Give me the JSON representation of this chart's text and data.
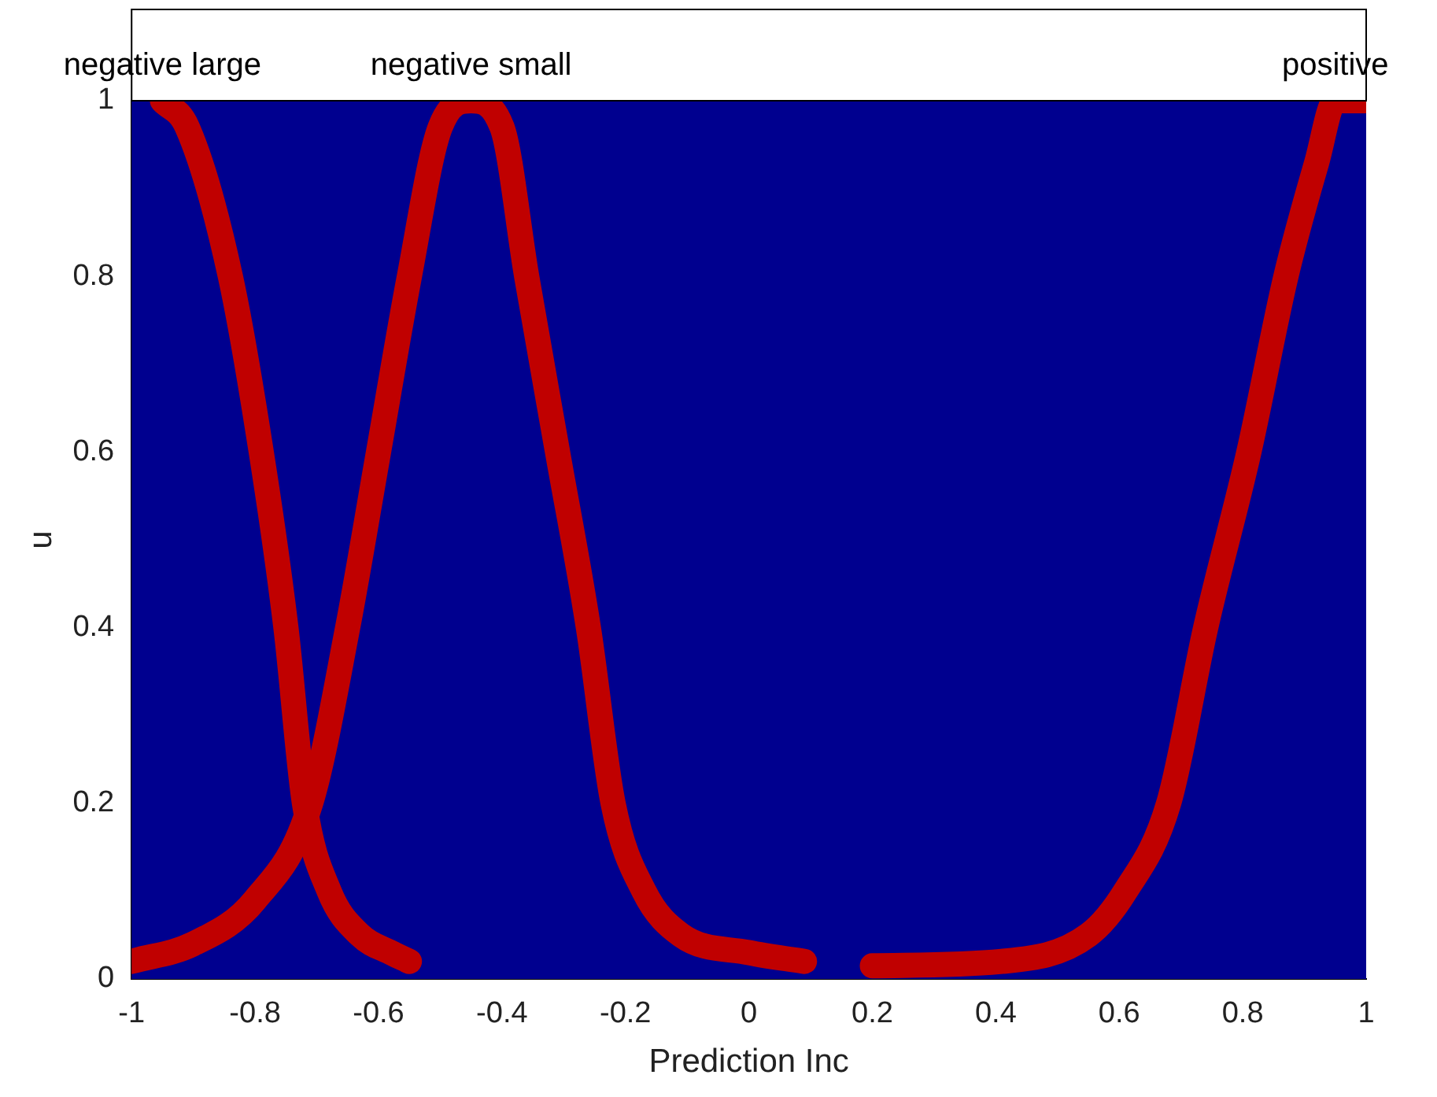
{
  "chart_data": {
    "type": "line",
    "xlabel": "Prediction Inc",
    "ylabel": "u",
    "xlim": [
      -1,
      1
    ],
    "xticks": [
      -1,
      -0.8,
      -0.6,
      -0.4,
      -0.2,
      0,
      0.2,
      0.4,
      0.6,
      0.8,
      1
    ],
    "ylim": [
      0,
      1
    ],
    "yticks": [
      0,
      0.2,
      0.4,
      0.6,
      0.8,
      1
    ],
    "grid": false,
    "legend": false,
    "marker": "none",
    "line_style": "solid",
    "series": [
      {
        "name": "negative large",
        "color": "#c00000",
        "x": [
          -0.95,
          -0.91,
          -0.84,
          -0.79,
          -0.75,
          -0.72,
          -0.68,
          -0.63,
          -0.58,
          -0.55
        ],
        "values": [
          1,
          0.97,
          0.8,
          0.6,
          0.4,
          0.2,
          0.1,
          0.05,
          0.03,
          0.02
        ]
      },
      {
        "name": "negative small",
        "color": "#c00000",
        "x": [
          -1,
          -0.9,
          -0.8,
          -0.71,
          -0.65,
          -0.6,
          -0.55,
          -0.5,
          -0.45,
          -0.4,
          -0.36,
          -0.31,
          -0.26,
          -0.22,
          -0.17,
          -0.11,
          0,
          0.09
        ],
        "values": [
          0.02,
          0.04,
          0.09,
          0.2,
          0.4,
          0.6,
          0.8,
          0.97,
          1,
          0.97,
          0.8,
          0.6,
          0.4,
          0.2,
          0.1,
          0.05,
          0.03,
          0.02
        ]
      },
      {
        "name": "positive",
        "color": "#c00000",
        "x": [
          0.2,
          0.41,
          0.55,
          0.61,
          0.68,
          0.74,
          0.81,
          0.87,
          0.92,
          0.95,
          1
        ],
        "values": [
          0.015,
          0.02,
          0.05,
          0.1,
          0.2,
          0.4,
          0.6,
          0.8,
          0.93,
          1,
          1
        ]
      }
    ]
  }
}
